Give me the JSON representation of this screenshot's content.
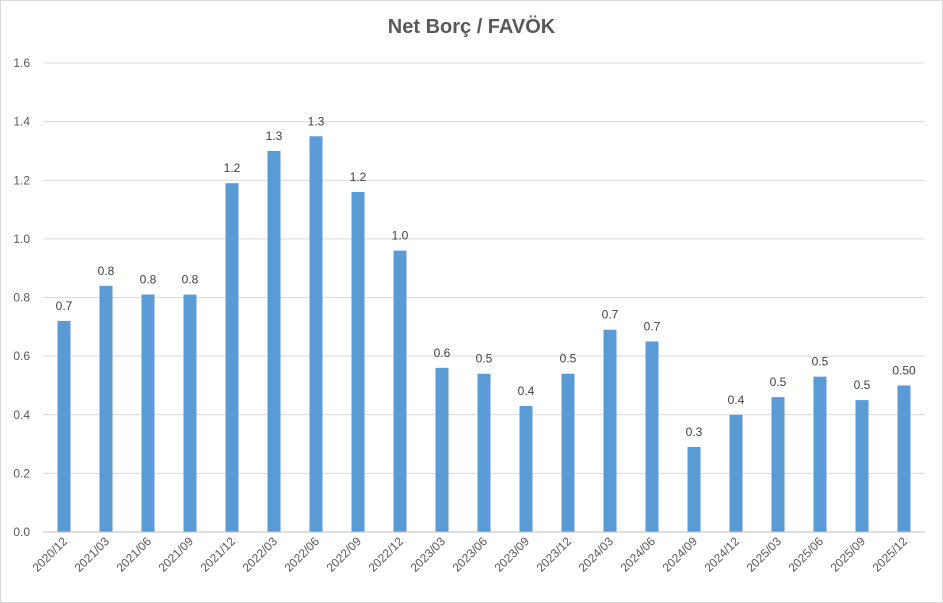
{
  "chart_data": {
    "type": "bar",
    "title": "Net Borç / FAVÖK",
    "xlabel": "",
    "ylabel": "",
    "ylim": [
      0,
      1.6
    ],
    "yticks": [
      "0.0",
      "0.2",
      "0.4",
      "0.6",
      "0.8",
      "1.0",
      "1.2",
      "1.4",
      "1.6"
    ],
    "grid": true,
    "categories": [
      "2020/12",
      "2021/03",
      "2021/06",
      "2021/09",
      "2021/12",
      "2022/03",
      "2022/06",
      "2022/09",
      "2022/12",
      "2023/03",
      "2023/06",
      "2023/09",
      "2023/12",
      "2024/03",
      "2024/06",
      "2024/09",
      "2024/12",
      "2025/03",
      "2025/06",
      "2025/09",
      "2025/12"
    ],
    "values": [
      0.72,
      0.84,
      0.81,
      0.81,
      1.19,
      1.3,
      1.35,
      1.16,
      0.96,
      0.56,
      0.54,
      0.43,
      0.54,
      0.69,
      0.65,
      0.29,
      0.4,
      0.46,
      0.53,
      0.45,
      0.5
    ],
    "data_labels": [
      "0.7",
      "0.8",
      "0.8",
      "0.8",
      "1.2",
      "1.3",
      "1.3",
      "1.2",
      "1.0",
      "0.6",
      "0.5",
      "0.4",
      "0.5",
      "0.7",
      "0.7",
      "0.3",
      "0.4",
      "0.5",
      "0.5",
      "0.5",
      "0.50"
    ],
    "bar_color": "#5b9bd5",
    "gridline_color": "#d9d9d9",
    "axis_color": "#bfbfbf"
  }
}
